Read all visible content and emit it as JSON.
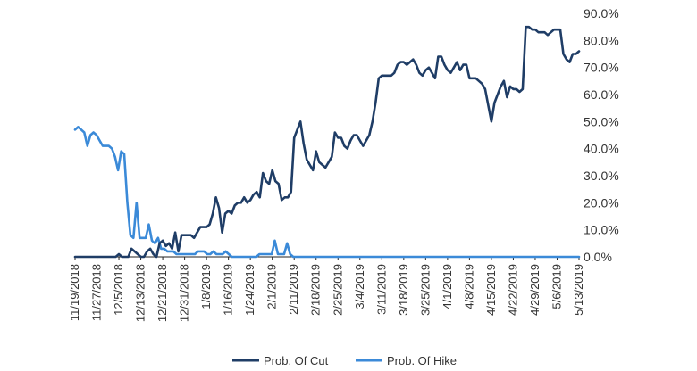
{
  "chart_data": {
    "type": "line",
    "title": "",
    "xlabel": "",
    "ylabel": "",
    "ylim": [
      0,
      90
    ],
    "y_ticks": [
      "0.0%",
      "10.0%",
      "20.0%",
      "30.0%",
      "40.0%",
      "50.0%",
      "60.0%",
      "70.0%",
      "80.0%",
      "90.0%"
    ],
    "x_ticks": [
      "11/19/2018",
      "11/27/2018",
      "12/5/2018",
      "12/13/2018",
      "12/21/2018",
      "12/31/2018",
      "1/8/2019",
      "1/16/2019",
      "1/24/2019",
      "2/1/2019",
      "2/11/2019",
      "2/18/2019",
      "2/25/2019",
      "3/4/2019",
      "3/11/2019",
      "3/18/2019",
      "3/25/2019",
      "4/1/2019",
      "4/8/2019",
      "4/15/2019",
      "4/22/2019",
      "4/29/2019",
      "5/6/2019",
      "5/13/2019"
    ],
    "grid": false,
    "legend_position": "bottom",
    "series": [
      {
        "name": "Prob. Of Cut",
        "color": "#1f3d66",
        "values": [
          0,
          0,
          0,
          0,
          0,
          0,
          0,
          0,
          0,
          0,
          0,
          0,
          0,
          0,
          1,
          0,
          0,
          0,
          3,
          2,
          1,
          0,
          0,
          2,
          3,
          1,
          0,
          5,
          6,
          4,
          5,
          3,
          9,
          2,
          8,
          8,
          8,
          8,
          7,
          9,
          11,
          11,
          11,
          12,
          16,
          22,
          18,
          9,
          16,
          17,
          16,
          19,
          20,
          20,
          22,
          20,
          21,
          23,
          24,
          22,
          31,
          28,
          27,
          32,
          28,
          27,
          21,
          22,
          22,
          24,
          44,
          47,
          50,
          42,
          36,
          34,
          32,
          39,
          35,
          34,
          33,
          35,
          37,
          46,
          44,
          44,
          41,
          40,
          43,
          45,
          45,
          43,
          41,
          43,
          45,
          50,
          57,
          66,
          67,
          67,
          67,
          67,
          68,
          71,
          72,
          72,
          71,
          72,
          73,
          71,
          68,
          67,
          69,
          70,
          68,
          66,
          74,
          74,
          71,
          69,
          68,
          70,
          72,
          69,
          71,
          71,
          66,
          66,
          66,
          65,
          64,
          62,
          56,
          50,
          57,
          60,
          63,
          65,
          59,
          63,
          62,
          62,
          61,
          62,
          85,
          85,
          84,
          84,
          83,
          83,
          83,
          82,
          83,
          84,
          84,
          84,
          75,
          73,
          72,
          75,
          75,
          76
        ]
      },
      {
        "name": "Prob. Of Hike",
        "color": "#3b8ad8",
        "values": [
          47,
          48,
          47,
          46,
          41,
          45,
          46,
          45,
          43,
          41,
          41,
          41,
          40,
          37,
          32,
          39,
          38,
          20,
          8,
          7,
          20,
          7,
          7,
          7,
          12,
          6,
          5,
          7,
          3,
          3,
          2,
          2,
          2,
          1,
          1,
          1,
          1,
          1,
          1,
          1,
          2,
          2,
          2,
          1,
          1,
          2,
          1,
          1,
          1,
          2,
          1,
          0,
          0,
          0,
          0,
          0,
          0,
          0,
          0,
          0,
          1,
          1,
          1,
          1,
          1,
          6,
          1,
          1,
          1,
          5,
          1,
          0,
          0,
          0,
          0,
          0,
          0,
          0,
          0,
          0,
          0,
          0,
          0,
          0,
          0,
          0,
          0,
          0,
          0,
          0,
          0,
          0,
          0,
          0,
          0,
          0,
          0,
          0,
          0,
          0,
          0,
          0,
          0,
          0,
          0,
          0,
          0,
          0,
          0,
          0,
          0,
          0,
          0,
          0,
          0,
          0,
          0,
          0,
          0,
          0,
          0,
          0,
          0,
          0,
          0,
          0,
          0,
          0,
          0,
          0,
          0,
          0,
          0,
          0,
          0,
          0,
          0,
          0,
          0,
          0,
          0,
          0,
          0,
          0,
          0,
          0,
          0,
          0,
          0,
          0,
          0,
          0,
          0,
          0,
          0,
          0,
          0,
          0,
          0,
          0,
          0,
          0,
          0,
          0,
          0
        ]
      }
    ]
  }
}
